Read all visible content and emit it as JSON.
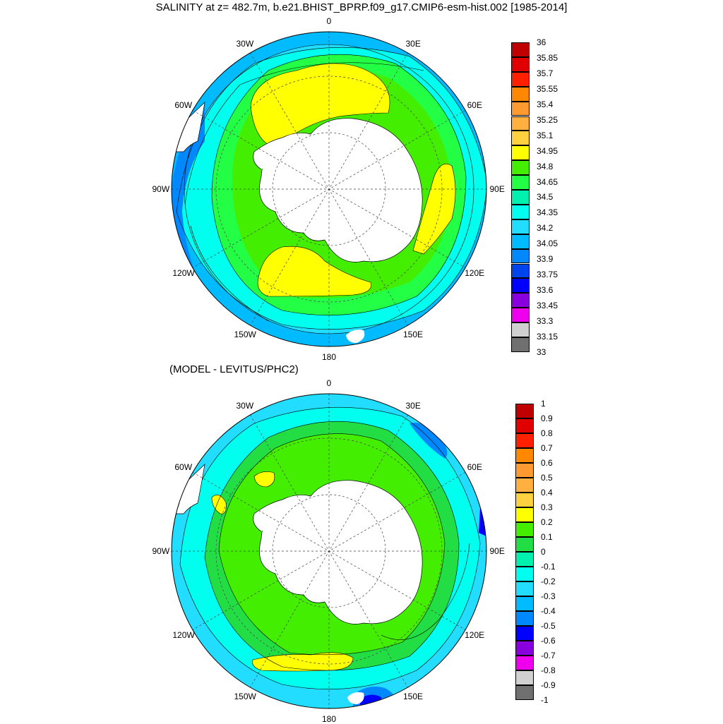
{
  "figure": {
    "title": "SALINITY at z= 482.7m, b.e21.BHIST_BPRP.f09_g17.CMIP6-esm-hist.002 [1985-2014]",
    "subtitle": "(MODEL - LEVITUS/PHC2)"
  },
  "chart_data": [
    {
      "type": "heatmap",
      "projection": "south-polar-stereographic",
      "variable": "SALINITY at z= 482.7m",
      "longitude_labels": [
        "0",
        "30E",
        "60E",
        "90E",
        "120E",
        "150E",
        "180",
        "150W",
        "120W",
        "90W",
        "60W",
        "30W"
      ],
      "colorbar": {
        "levels": [
          "36",
          "35.85",
          "35.7",
          "35.55",
          "35.4",
          "35.25",
          "35.1",
          "34.95",
          "34.8",
          "34.65",
          "34.5",
          "34.35",
          "34.2",
          "34.05",
          "33.9",
          "33.75",
          "33.6",
          "33.45",
          "33.3",
          "33.15",
          "33"
        ],
        "colors": [
          "#c00000",
          "#e00000",
          "#ff2000",
          "#ff8800",
          "#ff9a30",
          "#ffb040",
          "#ffd040",
          "#ffff00",
          "#44ee00",
          "#22ff44",
          "#00f0b0",
          "#00ffee",
          "#22ddff",
          "#00bbff",
          "#0088ff",
          "#0044ee",
          "#0000ff",
          "#8800dd",
          "#ee00ee",
          "#d0d0d0",
          "#707070"
        ]
      },
      "dominant_field": "34.65-34.95 near Antarctic shelf; 34.8-34.95 in Weddell, Ross and Indian sectors; 34.05-34.35 at northern rim"
    },
    {
      "type": "heatmap",
      "projection": "south-polar-stereographic",
      "variable": "(MODEL - LEVITUS/PHC2)",
      "longitude_labels": [
        "0",
        "30E",
        "60E",
        "90E",
        "120E",
        "150E",
        "180",
        "150W",
        "120W",
        "90W",
        "60W",
        "30W"
      ],
      "colorbar": {
        "levels": [
          "1",
          "0.9",
          "0.8",
          "0.7",
          "0.6",
          "0.5",
          "0.4",
          "0.3",
          "0.2",
          "0.1",
          "0",
          "-0.1",
          "-0.2",
          "-0.3",
          "-0.4",
          "-0.5",
          "-0.6",
          "-0.7",
          "-0.8",
          "-0.9",
          "-1"
        ],
        "colors": [
          "#c00000",
          "#e00000",
          "#ff2000",
          "#ff8800",
          "#ff9a30",
          "#ffb040",
          "#ffd040",
          "#ffff00",
          "#44ee00",
          "#22dd44",
          "#00f0b0",
          "#00ffee",
          "#22ddff",
          "#00bbff",
          "#0088ff",
          "#0000ff",
          "#8800dd",
          "#ee00ee",
          "#d0d0d0",
          "#707070"
        ]
      },
      "dominant_field": "0 to 0.2 around Antarctica; 0.2-0.3 in Ross sector band; -0.1 to -0.4 at northern rim"
    }
  ]
}
